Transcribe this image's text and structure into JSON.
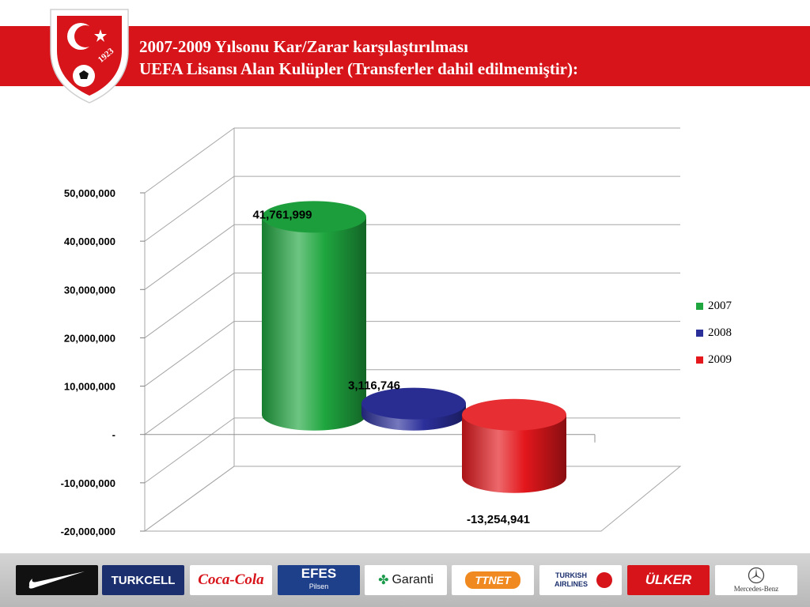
{
  "header": {
    "title_line1": "2007-2009 Yılsonu Kar/Zarar  karşılaştırılması",
    "title_line2": "UEFA Lisansı Alan Kulüpler (Transferler dahil edilmemiştir):",
    "badge_year": "1923",
    "colors": {
      "banner": "#d7141a",
      "text": "#ffffff"
    }
  },
  "chart_data": {
    "type": "bar",
    "style": "3d-cylinder",
    "categories": [
      ""
    ],
    "series": [
      {
        "name": "2007",
        "values": [
          41761999
        ],
        "label": "41,761,999",
        "color": "#1fa63f"
      },
      {
        "name": "2008",
        "values": [
          3116746
        ],
        "label": "3,116,746",
        "color": "#2b2f9a"
      },
      {
        "name": "2009",
        "values": [
          -13254941
        ],
        "label": "-13,254,941",
        "color": "#e3171c"
      }
    ],
    "ylim": [
      -20000000,
      50000000
    ],
    "yticks": [
      {
        "value": 50000000,
        "label": "50,000,000"
      },
      {
        "value": 40000000,
        "label": "40,000,000"
      },
      {
        "value": 30000000,
        "label": "30,000,000"
      },
      {
        "value": 20000000,
        "label": "20,000,000"
      },
      {
        "value": 10000000,
        "label": "10,000,000"
      },
      {
        "value": 0,
        "label": "-"
      },
      {
        "value": -10000000,
        "label": "-10,000,000"
      },
      {
        "value": -20000000,
        "label": "-20,000,000"
      }
    ],
    "grid": true,
    "legend_position": "right"
  },
  "sponsors": [
    {
      "name": "Nike",
      "label": "",
      "icon": "nike-swoosh-icon",
      "bg": "#111111",
      "fg": "#ffffff"
    },
    {
      "name": "Turkcell",
      "label": "TURKCELL",
      "bg": "#1b2f6e",
      "fg": "#ffffff"
    },
    {
      "name": "Coca-Cola",
      "label": "Coca-Cola",
      "bg": "#ffffff",
      "fg": "#d7141a"
    },
    {
      "name": "Efes",
      "label": "EFES",
      "sublabel": "Pilsen",
      "bg": "#1e3f8a",
      "fg": "#ffffff"
    },
    {
      "name": "Garanti",
      "label": "Garanti",
      "bg": "#ffffff",
      "fg": "#1a1a1a"
    },
    {
      "name": "TTNET",
      "label": "TTNET",
      "bg": "#ffffff",
      "fg": "#f08a20"
    },
    {
      "name": "Turkish Airlines",
      "label": "TURKISH AIRLINES",
      "bg": "#ffffff",
      "fg": "#1b2f6e"
    },
    {
      "name": "Ülker",
      "label": "ÜLKER",
      "bg": "#d7141a",
      "fg": "#ffffff"
    },
    {
      "name": "Mercedes-Benz",
      "label": "Mercedes-Benz",
      "bg": "#ffffff",
      "fg": "#333333"
    }
  ]
}
